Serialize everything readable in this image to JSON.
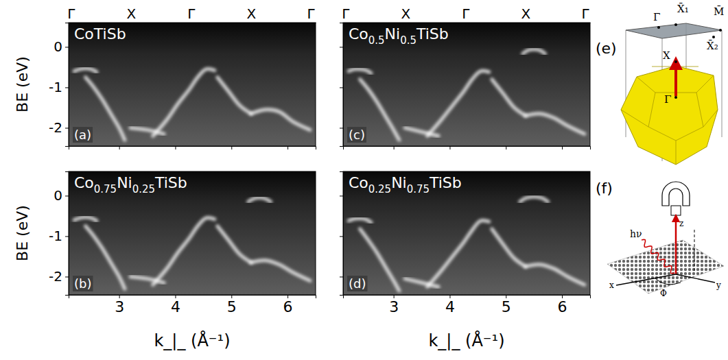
{
  "chart_data": [
    {
      "type": "line",
      "title": "CoTiSb",
      "label": "(a)",
      "ylabel": "BE (eV)",
      "color": "#ffffff",
      "xlim": [
        2.1,
        6.5
      ],
      "ylim": [
        -2.45,
        0.6
      ],
      "xticks": [
        3,
        4,
        5,
        6
      ],
      "yticks": [
        0,
        -1,
        -2
      ],
      "x2ticks": [
        {
          "value": 2.14,
          "label": "Γ"
        },
        {
          "value": 3.21,
          "label": "X"
        },
        {
          "value": 4.28,
          "label": "Γ"
        },
        {
          "value": 5.35,
          "label": "X"
        },
        {
          "value": 6.41,
          "label": "Γ"
        }
      ],
      "tick_labels": "y",
      "series": [
        {
          "x": [
            2.2,
            2.3,
            2.4,
            2.5,
            2.6
          ],
          "values": [
            -0.6,
            -0.55,
            -0.53,
            -0.55,
            -0.62
          ]
        },
        {
          "x": [
            2.4,
            2.55,
            2.7,
            2.85,
            3.0,
            3.1
          ],
          "values": [
            -0.75,
            -1.0,
            -1.3,
            -1.65,
            -2.0,
            -2.3
          ]
        },
        {
          "x": [
            3.6,
            3.85,
            4.05,
            4.25,
            4.4,
            4.55,
            4.7
          ],
          "values": [
            -2.2,
            -1.8,
            -1.4,
            -1.05,
            -0.75,
            -0.55,
            -0.58
          ]
        },
        {
          "x": [
            4.75,
            4.95,
            5.15,
            5.35
          ],
          "values": [
            -0.75,
            -1.1,
            -1.45,
            -1.65
          ]
        },
        {
          "x": [
            5.35,
            5.6,
            5.85,
            6.1,
            6.4
          ],
          "values": [
            -1.65,
            -1.55,
            -1.6,
            -1.85,
            -2.05
          ]
        },
        {
          "x": [
            3.2,
            3.5,
            3.8
          ],
          "values": [
            -2.0,
            -2.05,
            -2.15
          ]
        }
      ]
    },
    {
      "type": "line",
      "title": "Co0.75Ni0.25TiSb",
      "label": "(b)",
      "ylabel": "BE (eV)",
      "xlabel": "k_|_ (Å⁻¹)",
      "color": "#ffffff",
      "xlim": [
        2.1,
        6.5
      ],
      "ylim": [
        -2.45,
        0.6
      ],
      "xticks": [
        3,
        4,
        5,
        6
      ],
      "yticks": [
        0,
        -1,
        -2
      ],
      "series": [
        {
          "x": [
            2.2,
            2.3,
            2.4,
            2.5,
            2.6
          ],
          "values": [
            -0.6,
            -0.55,
            -0.53,
            -0.55,
            -0.62
          ]
        },
        {
          "x": [
            2.4,
            2.55,
            2.7,
            2.85,
            3.0,
            3.1
          ],
          "values": [
            -0.75,
            -1.0,
            -1.3,
            -1.65,
            -2.0,
            -2.3
          ]
        },
        {
          "x": [
            3.6,
            3.85,
            4.05,
            4.25,
            4.4,
            4.55,
            4.7
          ],
          "values": [
            -2.2,
            -1.8,
            -1.4,
            -1.05,
            -0.75,
            -0.55,
            -0.58
          ]
        },
        {
          "x": [
            4.75,
            4.95,
            5.15,
            5.35
          ],
          "values": [
            -0.75,
            -1.1,
            -1.45,
            -1.65
          ]
        },
        {
          "x": [
            5.35,
            5.6,
            5.85,
            6.1,
            6.4
          ],
          "values": [
            -1.65,
            -1.6,
            -1.7,
            -1.9,
            -2.1
          ]
        },
        {
          "x": [
            3.2,
            3.5,
            3.8
          ],
          "values": [
            -2.0,
            -2.05,
            -2.15
          ]
        },
        {
          "x": [
            5.3,
            5.4,
            5.5,
            5.6,
            5.7
          ],
          "values": [
            -0.15,
            -0.07,
            -0.05,
            -0.07,
            -0.15
          ]
        }
      ]
    },
    {
      "type": "line",
      "title": "Co0.5Ni0.5TiSb",
      "label": "(c)",
      "color": "#ffffff",
      "xlim": [
        2.1,
        6.5
      ],
      "ylim": [
        -2.45,
        0.6
      ],
      "xticks": [
        3,
        4,
        5,
        6
      ],
      "yticks": [
        0,
        -1,
        -2
      ],
      "x2ticks": [
        {
          "value": 2.14,
          "label": "Γ"
        },
        {
          "value": 3.21,
          "label": "X"
        },
        {
          "value": 4.28,
          "label": "Γ"
        },
        {
          "value": 5.35,
          "label": "X"
        },
        {
          "value": 6.41,
          "label": "Γ"
        }
      ],
      "tick_labels": false,
      "series": [
        {
          "x": [
            2.2,
            2.3,
            2.4,
            2.5,
            2.6
          ],
          "values": [
            -0.6,
            -0.55,
            -0.55,
            -0.57,
            -0.65
          ]
        },
        {
          "x": [
            2.4,
            2.55,
            2.7,
            2.85,
            3.0,
            3.1
          ],
          "values": [
            -0.8,
            -1.05,
            -1.35,
            -1.7,
            -2.05,
            -2.3
          ]
        },
        {
          "x": [
            3.6,
            3.85,
            4.05,
            4.25,
            4.4,
            4.55,
            4.7
          ],
          "values": [
            -2.2,
            -1.8,
            -1.45,
            -1.1,
            -0.8,
            -0.6,
            -0.62
          ]
        },
        {
          "x": [
            4.75,
            4.95,
            5.15,
            5.35
          ],
          "values": [
            -0.8,
            -1.15,
            -1.5,
            -1.7
          ]
        },
        {
          "x": [
            5.35,
            5.6,
            5.85,
            6.1,
            6.4
          ],
          "values": [
            -1.7,
            -1.65,
            -1.75,
            -1.95,
            -2.15
          ]
        },
        {
          "x": [
            3.2,
            3.5,
            3.8
          ],
          "values": [
            -2.0,
            -2.1,
            -2.2
          ]
        },
        {
          "x": [
            5.3,
            5.4,
            5.5,
            5.6,
            5.7
          ],
          "values": [
            -0.17,
            -0.08,
            -0.06,
            -0.08,
            -0.17
          ]
        }
      ]
    },
    {
      "type": "line",
      "title": "Co0.25Ni0.75TiSb",
      "label": "(d)",
      "xlabel": "k_|_ (Å⁻¹)",
      "color": "#ffffff",
      "xlim": [
        2.1,
        6.5
      ],
      "ylim": [
        -2.45,
        0.6
      ],
      "xticks": [
        3,
        4,
        5,
        6
      ],
      "yticks": [
        0,
        -1,
        -2
      ],
      "tick_labels": "x",
      "series": [
        {
          "x": [
            2.2,
            2.3,
            2.4,
            2.5,
            2.6
          ],
          "values": [
            -0.62,
            -0.57,
            -0.56,
            -0.58,
            -0.66
          ]
        },
        {
          "x": [
            2.4,
            2.55,
            2.7,
            2.85,
            3.0,
            3.1
          ],
          "values": [
            -0.82,
            -1.1,
            -1.4,
            -1.75,
            -2.1,
            -2.35
          ]
        },
        {
          "x": [
            3.6,
            3.85,
            4.05,
            4.25,
            4.4,
            4.55,
            4.7
          ],
          "values": [
            -2.25,
            -1.85,
            -1.5,
            -1.15,
            -0.85,
            -0.62,
            -0.64
          ]
        },
        {
          "x": [
            4.75,
            4.95,
            5.15,
            5.35
          ],
          "values": [
            -0.82,
            -1.2,
            -1.55,
            -1.75
          ]
        },
        {
          "x": [
            5.35,
            5.6,
            5.85,
            6.1,
            6.4
          ],
          "values": [
            -1.75,
            -1.7,
            -1.8,
            -2.0,
            -2.2
          ]
        },
        {
          "x": [
            3.2,
            3.5,
            3.8
          ],
          "values": [
            -2.05,
            -2.15,
            -2.25
          ]
        },
        {
          "x": [
            5.25,
            5.35,
            5.45,
            5.55,
            5.65,
            5.75
          ],
          "values": [
            -0.15,
            -0.06,
            -0.03,
            -0.03,
            -0.06,
            -0.15
          ]
        }
      ]
    }
  ],
  "panel_e": {
    "label": "(e)",
    "points": [
      "Γ̄",
      "X̄₁",
      "M̄",
      "X̄₂",
      "X",
      "Γ"
    ]
  },
  "panel_f": {
    "label": "(f)",
    "labels": [
      "hν",
      "z",
      "x",
      "y",
      "Φ"
    ]
  }
}
